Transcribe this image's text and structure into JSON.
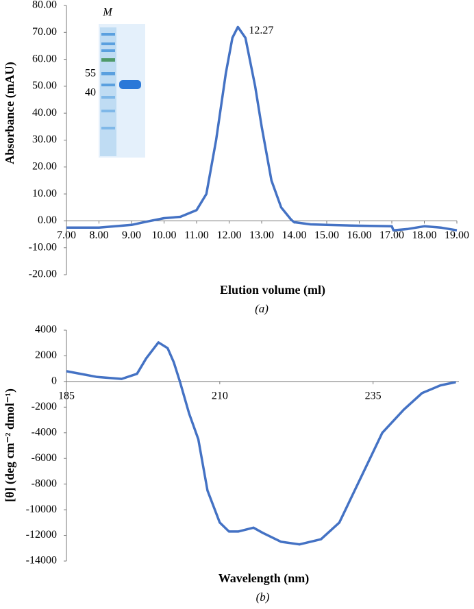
{
  "chart_data": [
    {
      "type": "line",
      "title_y": "Absorbance (mAU)",
      "title_x": "Elution volume (ml)",
      "caption": "(a)",
      "color": "#4472c4",
      "x": [
        7,
        8,
        9,
        9.5,
        10,
        10.5,
        11,
        11.3,
        11.6,
        11.9,
        12.1,
        12.27,
        12.5,
        12.8,
        13.0,
        13.3,
        13.6,
        13.9,
        14.0,
        14.5,
        15,
        16,
        17,
        17.05,
        17.5,
        18,
        18.5,
        19
      ],
      "values": [
        -2.5,
        -2.5,
        -1.5,
        -0.2,
        1,
        1.5,
        4,
        10,
        30,
        55,
        68,
        72,
        68,
        50,
        35,
        15,
        5,
        0.5,
        -0.5,
        -1.3,
        -1.5,
        -1.8,
        -2,
        -3.5,
        -3,
        -2,
        -2.5,
        -3.5
      ],
      "annotations": [
        "12.27"
      ],
      "inset_labels": [
        "M",
        "55",
        "40"
      ],
      "xlim": [
        7,
        19
      ],
      "xticks": [
        {
          "value": 7,
          "label": "7.00"
        },
        {
          "value": 8,
          "label": "8.00"
        },
        {
          "value": 9,
          "label": "9.00"
        },
        {
          "value": 10,
          "label": "10.00"
        },
        {
          "value": 11,
          "label": "11.00"
        },
        {
          "value": 12,
          "label": "12.00"
        },
        {
          "value": 13,
          "label": "13.00"
        },
        {
          "value": 14,
          "label": "14.00"
        },
        {
          "value": 15,
          "label": "15.00"
        },
        {
          "value": 16,
          "label": "16.00"
        },
        {
          "value": 17,
          "label": "17.00"
        },
        {
          "value": 18,
          "label": "18.00"
        },
        {
          "value": 19,
          "label": "19.00"
        }
      ],
      "ylim": [
        -20,
        80
      ],
      "yticks": [
        {
          "value": -20,
          "label": "-20.00"
        },
        {
          "value": -10,
          "label": "-10.00"
        },
        {
          "value": 0,
          "label": "0.00"
        },
        {
          "value": 10,
          "label": "10.00"
        },
        {
          "value": 20,
          "label": "20.00"
        },
        {
          "value": 30,
          "label": "30.00"
        },
        {
          "value": 40,
          "label": "40.00"
        },
        {
          "value": 50,
          "label": "50.00"
        },
        {
          "value": 60,
          "label": "60.00"
        },
        {
          "value": 70,
          "label": "70.00"
        },
        {
          "value": 80,
          "label": "80.00"
        }
      ]
    },
    {
      "type": "line",
      "title_y": "[θ] (deg cm⁻² dmol⁻¹)",
      "title_x": "Wavelength (nm)",
      "caption": "(b)",
      "color": "#4472c4",
      "x": [
        185,
        190,
        194,
        196.5,
        198,
        200,
        201.5,
        202.5,
        203.5,
        205,
        206.5,
        208,
        210,
        211.5,
        213,
        215.5,
        217,
        220,
        223,
        226.5,
        229.5,
        231.5,
        234.5,
        236.5,
        240,
        243,
        246,
        248.5
      ],
      "values": [
        800,
        350,
        200,
        600,
        1800,
        3050,
        2600,
        1500,
        0,
        -2500,
        -4500,
        -8500,
        -11000,
        -11700,
        -11700,
        -11400,
        -11800,
        -12500,
        -12700,
        -12300,
        -11000,
        -9000,
        -6000,
        -4000,
        -2200,
        -900,
        -300,
        -50
      ],
      "xlim": [
        185,
        249
      ],
      "xticks": [
        185,
        210,
        235
      ],
      "ylim": [
        -14000,
        4000
      ],
      "yticks": [
        -14000,
        -12000,
        -10000,
        -8000,
        -6000,
        -4000,
        -2000,
        0,
        2000,
        4000
      ]
    }
  ]
}
